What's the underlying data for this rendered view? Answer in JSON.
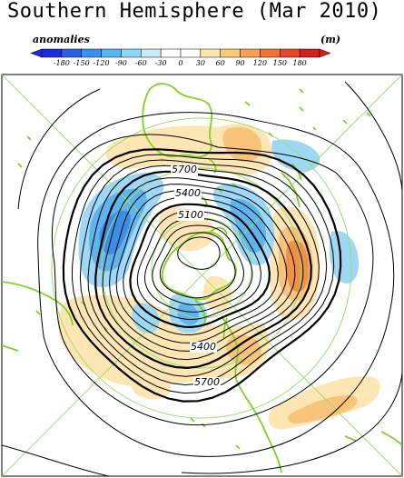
{
  "title": "Southern Hemisphere (Mar 2010)",
  "legend": {
    "label": "anomalies",
    "unit": "(m)",
    "ticks": [
      "-180",
      "-150",
      "-120",
      "-90",
      "-60",
      "-30",
      "0",
      "30",
      "60",
      "90",
      "120",
      "150",
      "180"
    ],
    "colors": [
      "#1a2be0",
      "#2a60e6",
      "#3b8fee",
      "#55b6f2",
      "#8cd6f8",
      "#c6ecfa",
      "#ffffff",
      "#ffffff",
      "#fde9b0",
      "#fbc978",
      "#f7a04d",
      "#f07332",
      "#e8452a",
      "#d4201f"
    ]
  },
  "map": {
    "contour_labels": [
      "5700",
      "5400",
      "5100",
      "5400",
      "5700"
    ],
    "colors": {
      "contour": "#000000",
      "coast": "#7ed321",
      "grid": "#9be06a",
      "neg_light": "#9ed8f6",
      "neg_mid": "#5fb4ee",
      "neg_dark": "#3d8ee6",
      "pos_light": "#fde6b4",
      "pos_mid": "#f8c47c",
      "pos_dark": "#ef9244"
    }
  }
}
